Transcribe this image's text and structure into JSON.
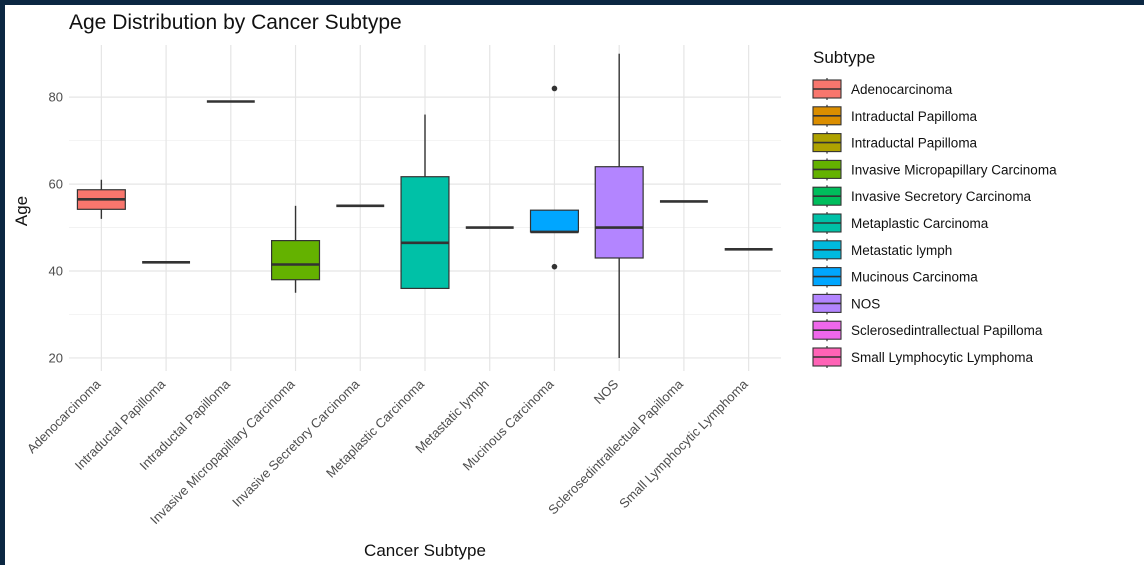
{
  "chart_data": {
    "type": "box",
    "title": "Age Distribution by Cancer Subtype",
    "xlabel": "Cancer Subtype",
    "ylabel": "Age",
    "ylim": [
      17,
      92
    ],
    "yticks": [
      20,
      40,
      60,
      80
    ],
    "grid": true,
    "legend": {
      "title": "Subtype",
      "position": "right"
    },
    "categories": [
      "Adenocarcinoma",
      "Intraductal Papilloma",
      "Intraductal Papilloma",
      "Invasive Micropapillary Carcinoma",
      "Invasive Secretory Carcinoma",
      "Metaplastic Carcinoma",
      "Metastatic lymph",
      "Mucinous Carcinoma",
      "NOS",
      "Sclerosedintrallectual Papilloma",
      "Small Lymphocytic Lymphoma"
    ],
    "series": [
      {
        "name": "Adenocarcinoma",
        "color": "#F8766D",
        "min": 52,
        "q1": 54.2,
        "median": 56.5,
        "q3": 58.7,
        "max": 61,
        "outliers": []
      },
      {
        "name": "Intraductal Papilloma",
        "color": "#DB8E00",
        "min": 42,
        "q1": 42,
        "median": 42,
        "q3": 42,
        "max": 42,
        "outliers": []
      },
      {
        "name": "Intraductal Papilloma",
        "color": "#AEA200",
        "min": 79,
        "q1": 79,
        "median": 79,
        "q3": 79,
        "max": 79,
        "outliers": []
      },
      {
        "name": "Invasive Micropapillary Carcinoma",
        "color": "#64B200",
        "min": 35,
        "q1": 38,
        "median": 41.5,
        "q3": 47,
        "max": 55,
        "outliers": []
      },
      {
        "name": "Invasive Secretory Carcinoma",
        "color": "#00BD5C",
        "min": 55,
        "q1": 55,
        "median": 55,
        "q3": 55,
        "max": 55,
        "outliers": []
      },
      {
        "name": "Metaplastic Carcinoma",
        "color": "#00C1A7",
        "min": 36,
        "q1": 36,
        "median": 46.5,
        "q3": 61.7,
        "max": 76,
        "outliers": []
      },
      {
        "name": "Metastatic lymph",
        "color": "#00BADE",
        "min": 50,
        "q1": 50,
        "median": 50,
        "q3": 50,
        "max": 50,
        "outliers": []
      },
      {
        "name": "Mucinous Carcinoma",
        "color": "#00A6FF",
        "min": 49,
        "q1": 49,
        "median": 49,
        "q3": 54,
        "max": 54,
        "outliers": [
          82,
          41
        ]
      },
      {
        "name": "NOS",
        "color": "#B385FF",
        "min": 20,
        "q1": 43,
        "median": 50,
        "q3": 64,
        "max": 90,
        "outliers": []
      },
      {
        "name": "Sclerosedintrallectual Papilloma",
        "color": "#EF67EB",
        "min": 56,
        "q1": 56,
        "median": 56,
        "q3": 56,
        "max": 56,
        "outliers": []
      },
      {
        "name": "Small Lymphocytic Lymphoma",
        "color": "#FF63B6",
        "min": 45,
        "q1": 45,
        "median": 45,
        "q3": 45,
        "max": 45,
        "outliers": []
      }
    ]
  }
}
